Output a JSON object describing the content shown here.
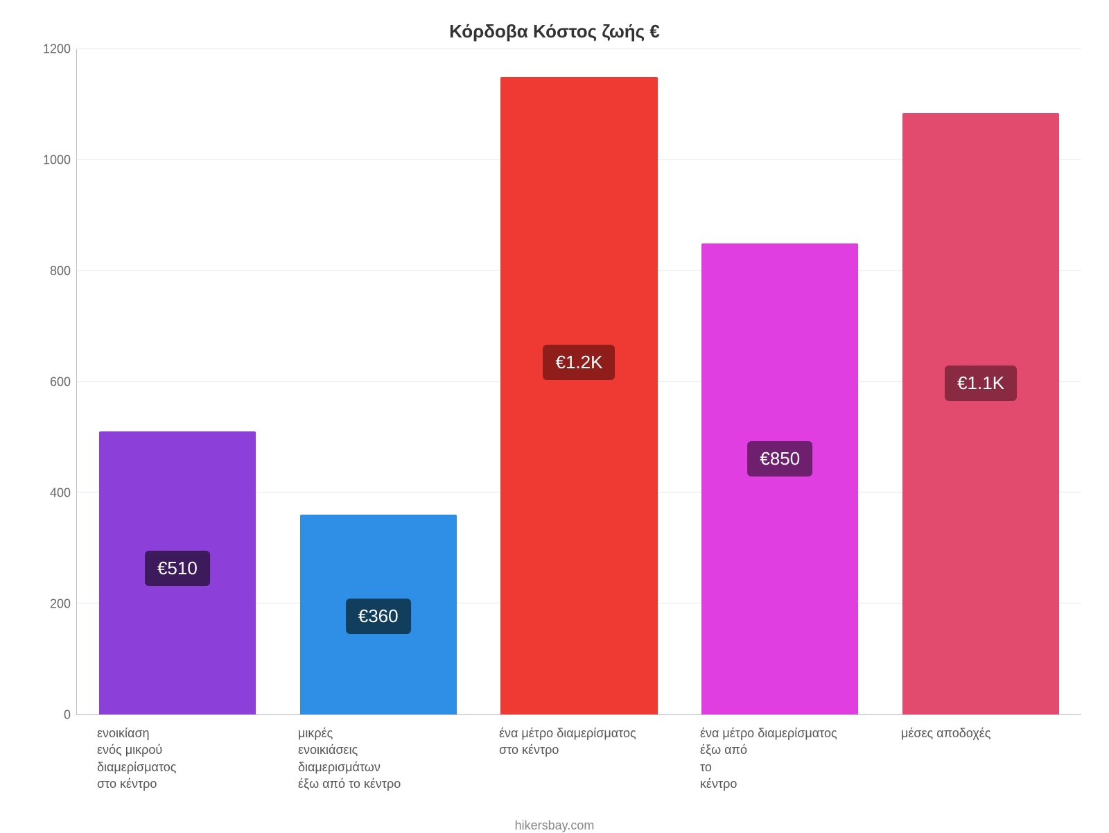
{
  "chart": {
    "type": "bar",
    "title": "Κόρδοβα Κόστος ζωής €",
    "title_fontsize": 26,
    "title_color": "#333333",
    "background_color": "#ffffff",
    "grid_color": "#e6e6e6",
    "axis_color": "#bfbfbf",
    "ylim_min": 0,
    "ylim_max": 1200,
    "ytick_step": 200,
    "ytick_fontsize": 18,
    "ytick_color": "#666666",
    "xlabel_fontsize": 18,
    "xlabel_color": "#555555",
    "bar_width_pct": 78,
    "badge_fontsize": 26,
    "badge_radius": 6,
    "caption": "hikersbay.com",
    "caption_color": "#888888",
    "caption_fontsize": 18,
    "bars": [
      {
        "label": "ενοικίαση\nενός μικρού\nδιαμερίσματος\nστο κέντρο",
        "value": 510,
        "value_label": "€510",
        "bar_color": "#8c3fd9",
        "badge_bg": "#3d1a5b"
      },
      {
        "label": "μικρές\nενοικιάσεις\nδιαμερισμάτων\nέξω από το κέντρο",
        "value": 360,
        "value_label": "€360",
        "bar_color": "#2f8fe6",
        "badge_bg": "#123e5e"
      },
      {
        "label": "ένα μέτρο διαμερίσματος\nστο κέντρο",
        "value": 1150,
        "value_label": "€1.2K",
        "bar_color": "#ef3a33",
        "badge_bg": "#8f1e1a"
      },
      {
        "label": "ένα μέτρο διαμερίσματος\nέξω από\nτο\nκέντρο",
        "value": 850,
        "value_label": "€850",
        "bar_color": "#e13ee1",
        "badge_bg": "#6e1f6e"
      },
      {
        "label": "μέσες αποδοχές",
        "value": 1085,
        "value_label": "€1.1K",
        "bar_color": "#e24a6e",
        "badge_bg": "#8a2a42"
      }
    ]
  }
}
